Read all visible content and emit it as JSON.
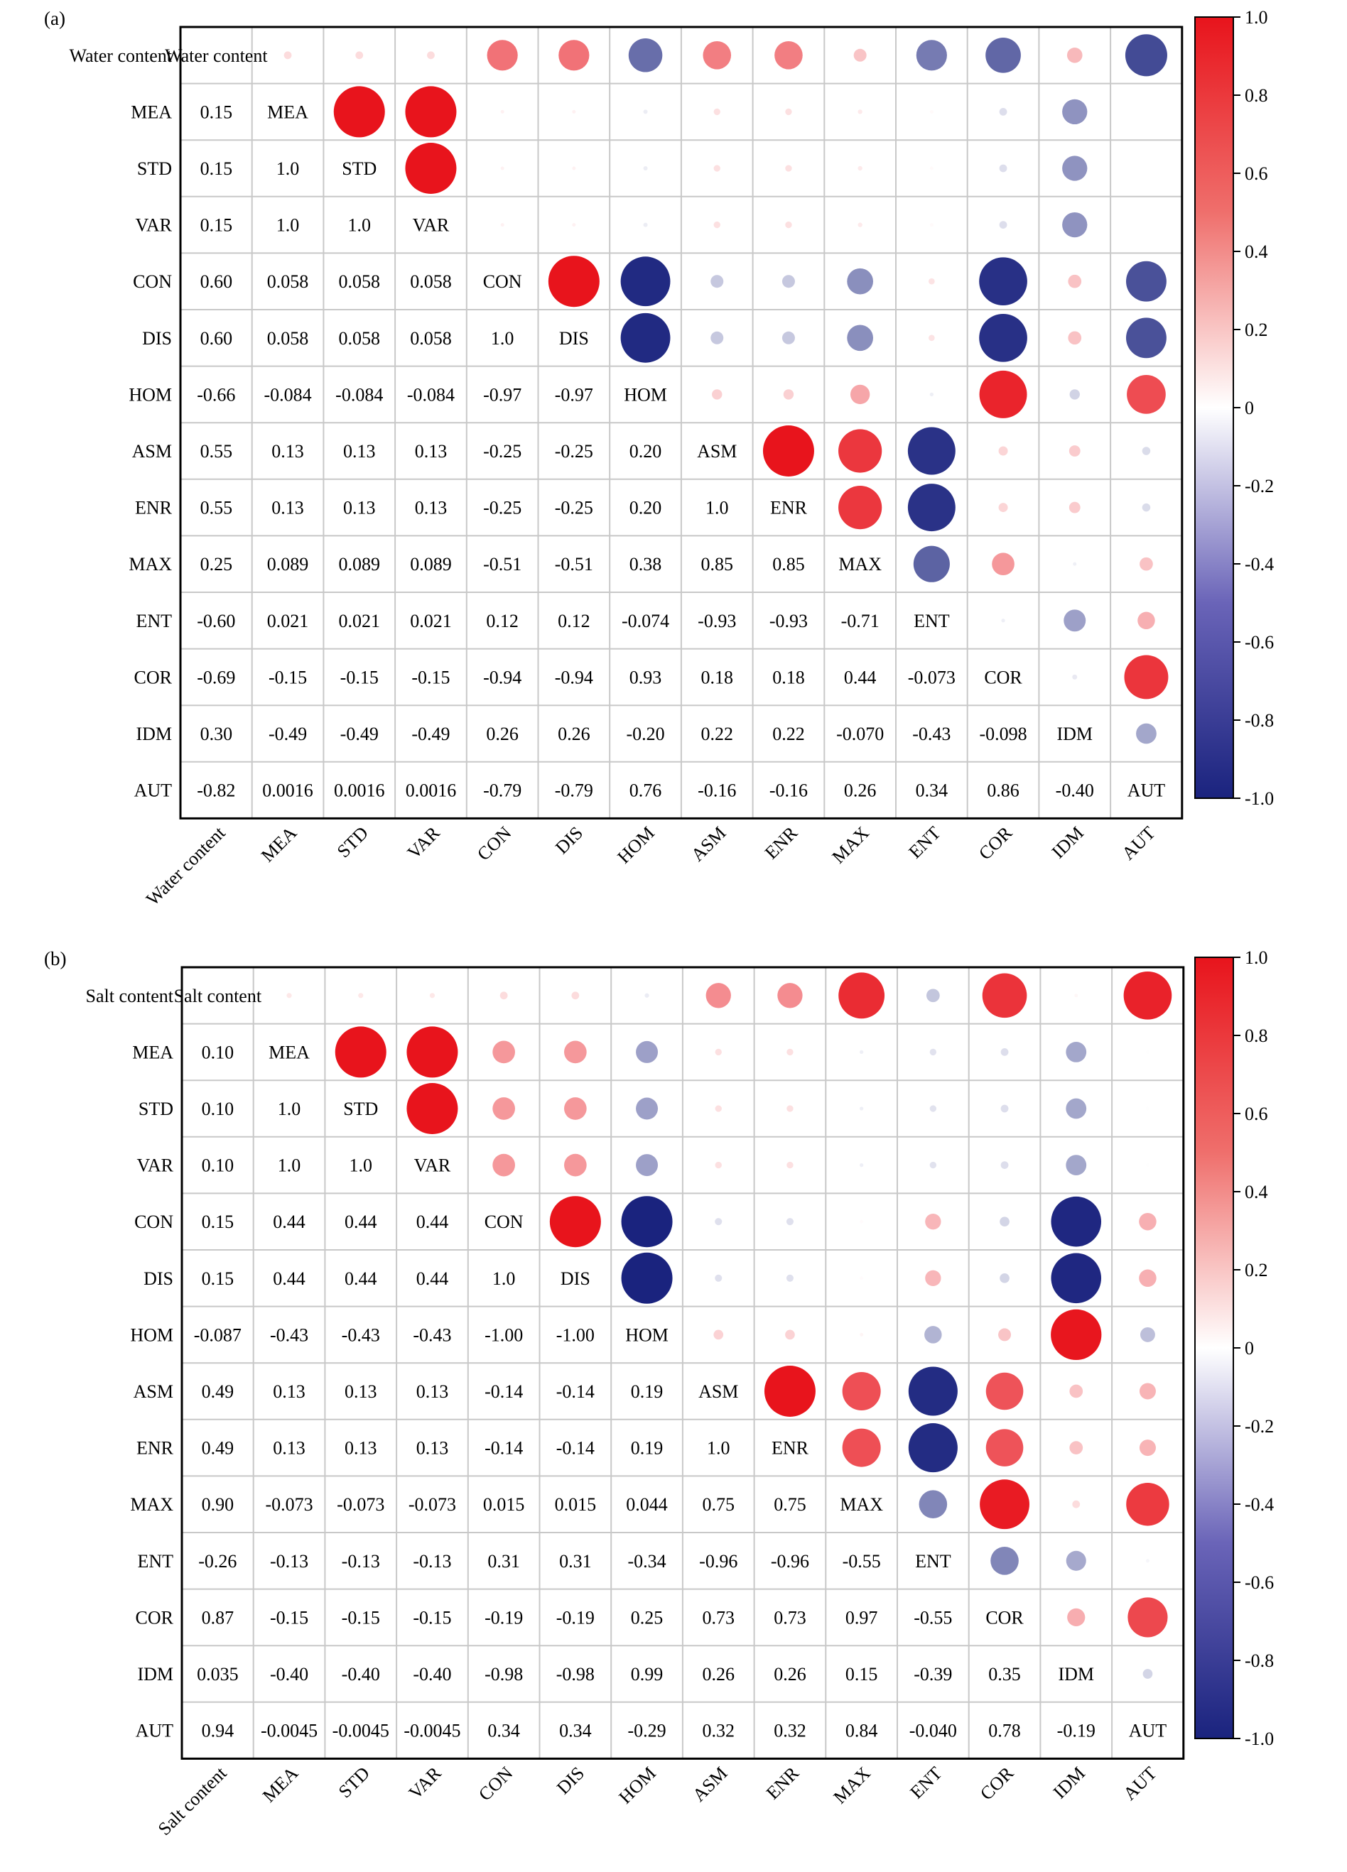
{
  "colorbar": {
    "ticks": [
      "1.0",
      "0.8",
      "0.6",
      "0.4",
      "0.2",
      "0",
      "-0.2",
      "-0.4",
      "-0.6",
      "-0.8",
      "-1.0"
    ],
    "colors": {
      "positive": "#e8141c",
      "neutral": "#ffffff",
      "negative": "#1a237e"
    }
  },
  "chart_data": [
    {
      "type": "heatmap",
      "panel_label": "(a)",
      "variables": [
        "Water content",
        "MEA",
        "STD",
        "VAR",
        "CON",
        "DIS",
        "HOM",
        "ASM",
        "ENR",
        "MAX",
        "ENT",
        "COR",
        "IDM",
        "AUT"
      ],
      "lower_labels": [
        [
          "0.15"
        ],
        [
          "0.15",
          "1.0"
        ],
        [
          "0.15",
          "1.0",
          "1.0"
        ],
        [
          "0.60",
          "0.058",
          "0.058",
          "0.058"
        ],
        [
          "0.60",
          "0.058",
          "0.058",
          "0.058",
          "1.0"
        ],
        [
          "-0.66",
          "-0.084",
          "-0.084",
          "-0.084",
          "-0.97",
          "-0.97"
        ],
        [
          "0.55",
          "0.13",
          "0.13",
          "0.13",
          "-0.25",
          "-0.25",
          "0.20"
        ],
        [
          "0.55",
          "0.13",
          "0.13",
          "0.13",
          "-0.25",
          "-0.25",
          "0.20",
          "1.0"
        ],
        [
          "0.25",
          "0.089",
          "0.089",
          "0.089",
          "-0.51",
          "-0.51",
          "0.38",
          "0.85",
          "0.85"
        ],
        [
          "-0.60",
          "0.021",
          "0.021",
          "0.021",
          "0.12",
          "0.12",
          "-0.074",
          "-0.93",
          "-0.93",
          "-0.71"
        ],
        [
          "-0.69",
          "-0.15",
          "-0.15",
          "-0.15",
          "-0.94",
          "-0.94",
          "0.93",
          "0.18",
          "0.18",
          "0.44",
          "-0.073"
        ],
        [
          "0.30",
          "-0.49",
          "-0.49",
          "-0.49",
          "0.26",
          "0.26",
          "-0.20",
          "0.22",
          "0.22",
          "-0.070",
          "-0.43",
          "-0.098"
        ],
        [
          "-0.82",
          "0.0016",
          "0.0016",
          "0.0016",
          "-0.79",
          "-0.79",
          "0.76",
          "-0.16",
          "-0.16",
          "0.26",
          "0.34",
          "0.86",
          "-0.40"
        ]
      ]
    },
    {
      "type": "heatmap",
      "panel_label": "(b)",
      "variables": [
        "Salt content",
        "MEA",
        "STD",
        "VAR",
        "CON",
        "DIS",
        "HOM",
        "ASM",
        "ENR",
        "MAX",
        "ENT",
        "COR",
        "IDM",
        "AUT"
      ],
      "lower_labels": [
        [
          "0.10"
        ],
        [
          "0.10",
          "1.0"
        ],
        [
          "0.10",
          "1.0",
          "1.0"
        ],
        [
          "0.15",
          "0.44",
          "0.44",
          "0.44"
        ],
        [
          "0.15",
          "0.44",
          "0.44",
          "0.44",
          "1.0"
        ],
        [
          "-0.087",
          "-0.43",
          "-0.43",
          "-0.43",
          "-1.00",
          "-1.00"
        ],
        [
          "0.49",
          "0.13",
          "0.13",
          "0.13",
          "-0.14",
          "-0.14",
          "0.19"
        ],
        [
          "0.49",
          "0.13",
          "0.13",
          "0.13",
          "-0.14",
          "-0.14",
          "0.19",
          "1.0"
        ],
        [
          "0.90",
          "-0.073",
          "-0.073",
          "-0.073",
          "0.015",
          "0.015",
          "0.044",
          "0.75",
          "0.75"
        ],
        [
          "-0.26",
          "-0.13",
          "-0.13",
          "-0.13",
          "0.31",
          "0.31",
          "-0.34",
          "-0.96",
          "-0.96",
          "-0.55"
        ],
        [
          "0.87",
          "-0.15",
          "-0.15",
          "-0.15",
          "-0.19",
          "-0.19",
          "0.25",
          "0.73",
          "0.73",
          "0.97",
          "-0.55"
        ],
        [
          "0.035",
          "-0.40",
          "-0.40",
          "-0.40",
          "-0.98",
          "-0.98",
          "0.99",
          "0.26",
          "0.26",
          "0.15",
          "-0.39",
          "0.35"
        ],
        [
          "0.94",
          "-0.0045",
          "-0.0045",
          "-0.0045",
          "0.34",
          "0.34",
          "-0.29",
          "0.32",
          "0.32",
          "0.84",
          "-0.040",
          "0.78",
          "-0.19"
        ]
      ]
    }
  ]
}
